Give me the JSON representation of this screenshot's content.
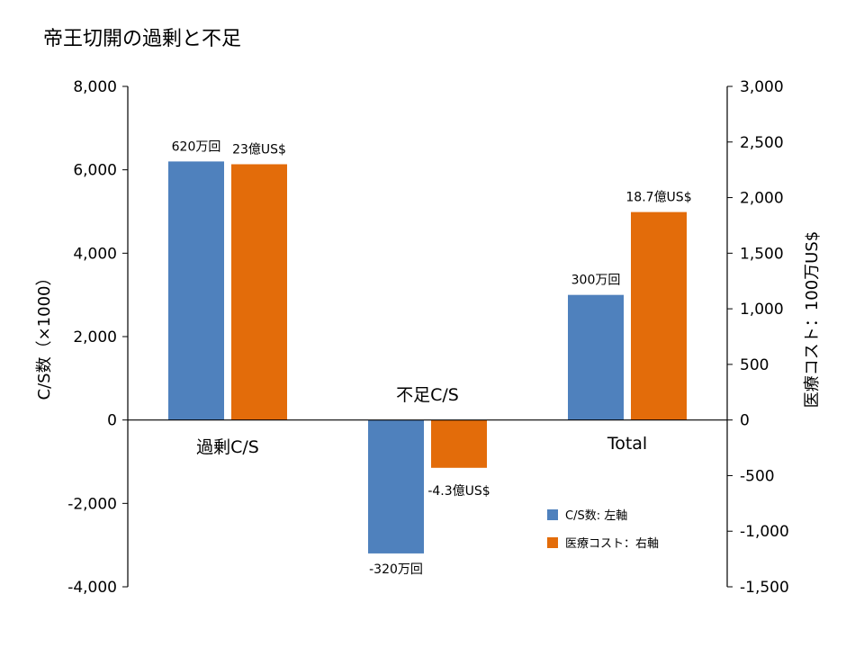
{
  "chart_data": {
    "type": "bar",
    "title": "帝王切開の過剰と不足",
    "categories": [
      "過剰C/S",
      "不足C/S",
      "Total"
    ],
    "ylabel_left": "C/S数（×1000）",
    "ylabel_right": "医療コスト：100万US$",
    "ylim_left": [
      -4000,
      8000
    ],
    "ylim_right": [
      -1500,
      3000
    ],
    "yticks_left": [
      "8,000",
      "6,000",
      "4,000",
      "2,000",
      "0",
      "-2,000",
      "-4,000"
    ],
    "yticks_right": [
      "3,000",
      "2,500",
      "2,000",
      "1,500",
      "1,000",
      "500",
      "0",
      "-500",
      "-1,000",
      "-1,500"
    ],
    "grid": false,
    "legend_position": "bottom-right",
    "series": [
      {
        "name": "C/S数: 左軸",
        "axis": "left",
        "color": "#4f81bd",
        "values": [
          6200,
          -3200,
          3000
        ],
        "labels": [
          "620万回",
          "-320万回",
          "300万回"
        ]
      },
      {
        "name": "医療コスト：右軸",
        "axis": "right",
        "color": "#e36c0a",
        "values": [
          2300,
          -430,
          1870
        ],
        "labels": [
          "23億US$",
          "-4.3億US$",
          "18.7億US$"
        ]
      }
    ]
  }
}
